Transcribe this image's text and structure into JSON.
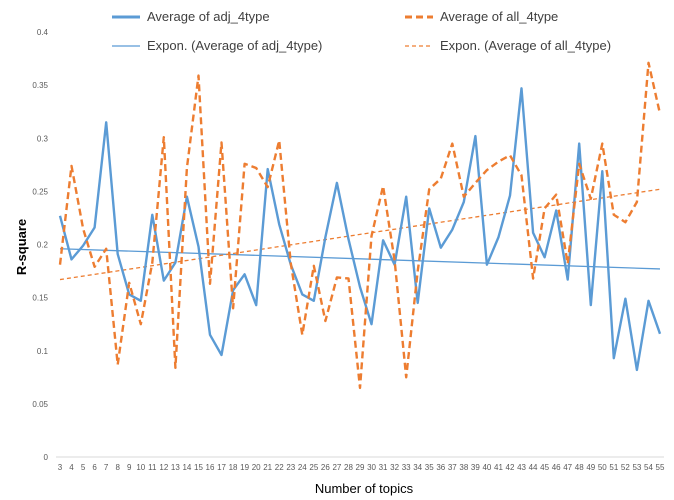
{
  "chart_data": {
    "type": "line",
    "xlabel": "Number of topics",
    "ylabel": "R-square",
    "ylim": [
      0,
      0.4
    ],
    "yticks": [
      "0",
      "0.05",
      "0.1",
      "0.15",
      "0.2",
      "0.25",
      "0.3",
      "0.35",
      "0.4"
    ],
    "x": [
      3,
      4,
      5,
      6,
      7,
      8,
      9,
      10,
      11,
      12,
      13,
      14,
      15,
      16,
      17,
      18,
      19,
      20,
      21,
      22,
      23,
      24,
      25,
      26,
      27,
      28,
      29,
      30,
      31,
      32,
      33,
      34,
      35,
      36,
      37,
      38,
      39,
      40,
      41,
      42,
      43,
      44,
      45,
      46,
      47,
      48,
      49,
      50,
      51,
      52,
      53,
      54,
      55
    ],
    "series": [
      {
        "name": "Average of adj_4type",
        "color": "#5b9bd5",
        "style": "solid-thick",
        "values": [
          0.227,
          0.186,
          0.199,
          0.216,
          0.315,
          0.191,
          0.153,
          0.147,
          0.228,
          0.166,
          0.183,
          0.245,
          0.198,
          0.115,
          0.096,
          0.157,
          0.172,
          0.143,
          0.271,
          0.219,
          0.181,
          0.153,
          0.147,
          0.207,
          0.258,
          0.205,
          0.16,
          0.125,
          0.204,
          0.181,
          0.245,
          0.145,
          0.234,
          0.197,
          0.214,
          0.24,
          0.302,
          0.181,
          0.207,
          0.246,
          0.347,
          0.211,
          0.188,
          0.232,
          0.167,
          0.295,
          0.143,
          0.269,
          0.093,
          0.149,
          0.082,
          0.147,
          0.116
        ]
      },
      {
        "name": "Average of all_4type",
        "color": "#ed7d31",
        "style": "dashed-thick",
        "values": [
          0.181,
          0.274,
          0.215,
          0.179,
          0.196,
          0.087,
          0.164,
          0.125,
          0.183,
          0.301,
          0.084,
          0.272,
          0.359,
          0.163,
          0.296,
          0.14,
          0.276,
          0.272,
          0.254,
          0.298,
          0.182,
          0.115,
          0.18,
          0.128,
          0.169,
          0.168,
          0.065,
          0.208,
          0.255,
          0.185,
          0.075,
          0.175,
          0.252,
          0.262,
          0.295,
          0.245,
          0.258,
          0.27,
          0.278,
          0.284,
          0.265,
          0.168,
          0.234,
          0.247,
          0.182,
          0.276,
          0.243,
          0.295,
          0.228,
          0.221,
          0.24,
          0.371,
          0.323
        ]
      }
    ],
    "trendlines": [
      {
        "name": "Expon. (Average of adj_4type)",
        "color": "#5b9bd5",
        "style": "solid-thin",
        "x": [
          3,
          55
        ],
        "values": [
          0.196,
          0.177
        ]
      },
      {
        "name": "Expon. (Average of all_4type)",
        "color": "#ed7d31",
        "style": "dashed-thin",
        "x": [
          3,
          55
        ],
        "values": [
          0.167,
          0.252
        ]
      }
    ],
    "grid": false,
    "legend_position": "top"
  }
}
